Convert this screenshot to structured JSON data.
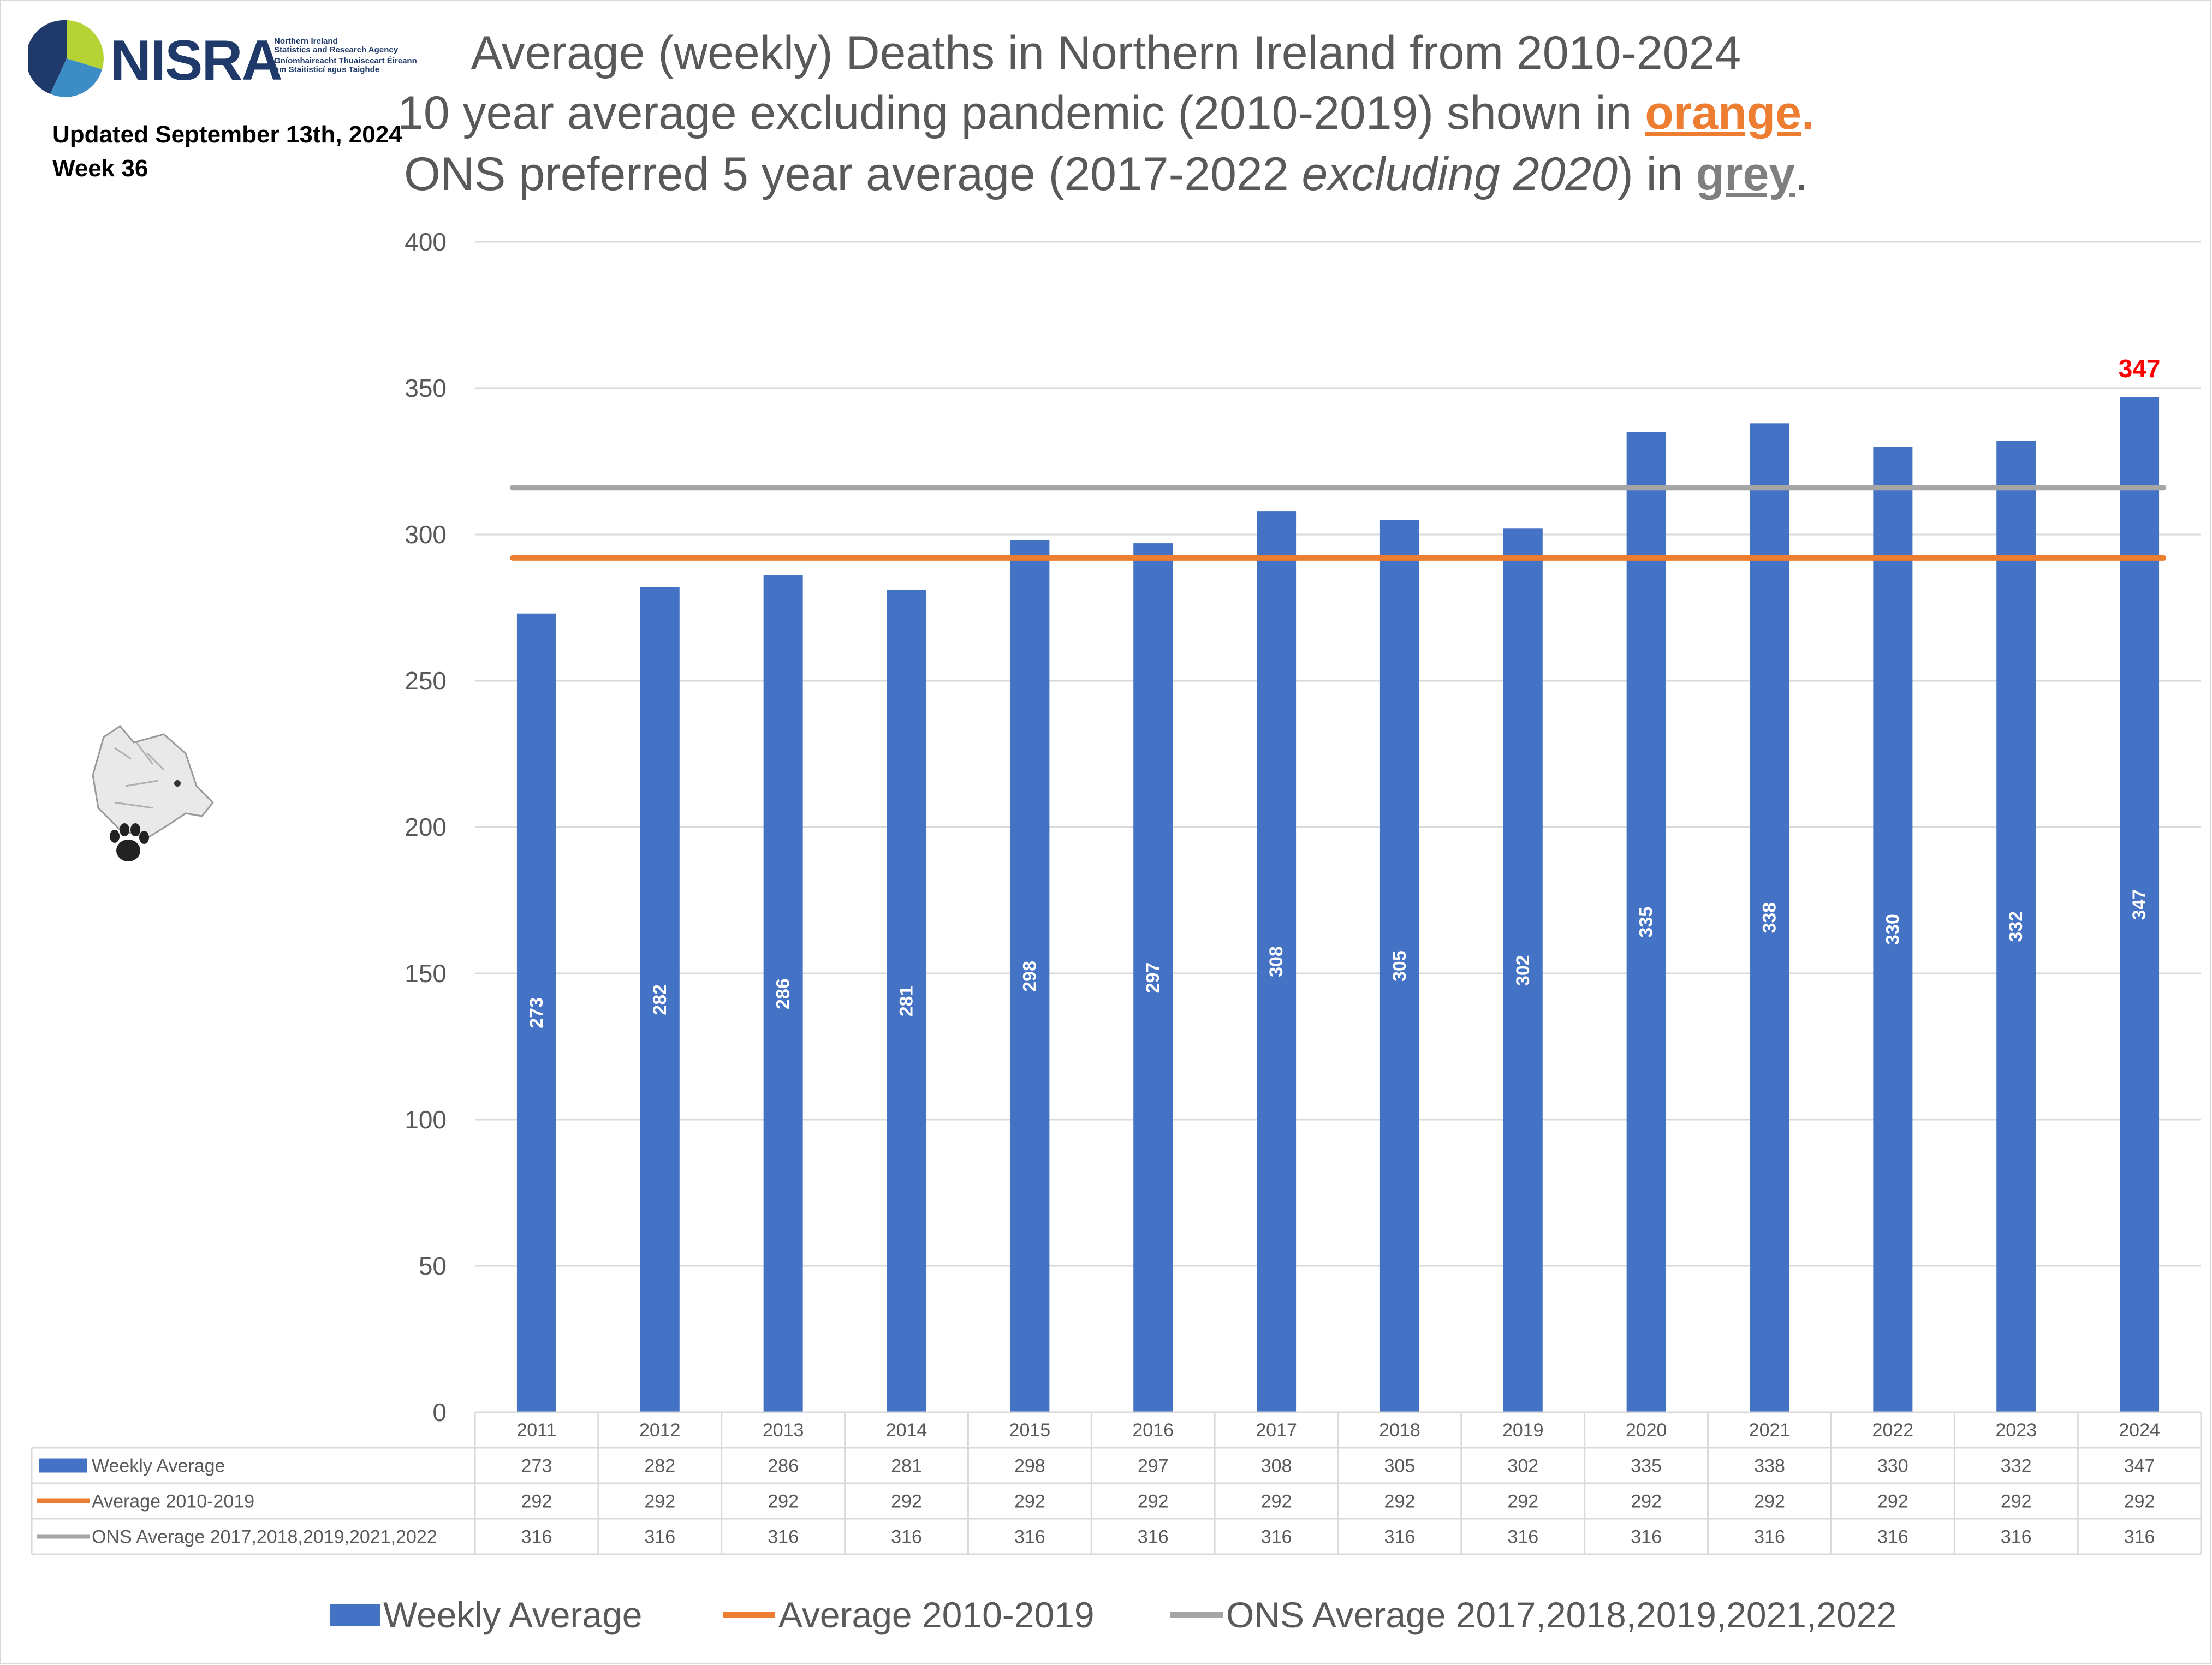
{
  "header": {
    "logo_text": "NISRA",
    "logo_sub": [
      "Northern Ireland",
      "Statistics and Research Agency",
      "Gníomhaireacht Thuaisceart Éireann",
      "um Staitisticí agus Taighde"
    ],
    "updated": "Updated September 13th, 2024",
    "week": "Week 36"
  },
  "title": {
    "line1": "Average (weekly) Deaths in Northern Ireland from 2010-2024",
    "line2_prefix": "10 year average excluding pandemic (2010-2019) shown in ",
    "line2_highlight": "orange",
    "line2_suffix": ".",
    "line3_prefix": "ONS preferred 5 year average (2017-2022 ",
    "line3_italic": "excluding 2020",
    "line3_mid": ") in ",
    "line3_highlight": "grey",
    "line3_suffix": "."
  },
  "colors": {
    "bar": "#4472c4",
    "orange": "#ed7d31",
    "grey": "#a5a5a5",
    "highlight_label": "#ff0000",
    "text": "#595959",
    "grid": "#d9d9d9"
  },
  "chart_data": {
    "type": "bar",
    "categories": [
      "2011",
      "2012",
      "2013",
      "2014",
      "2015",
      "2016",
      "2017",
      "2018",
      "2019",
      "2020",
      "2021",
      "2022",
      "2023",
      "2024"
    ],
    "series": [
      {
        "name": "Weekly Average",
        "kind": "bar",
        "values": [
          273,
          282,
          286,
          281,
          298,
          297,
          308,
          305,
          302,
          335,
          338,
          330,
          332,
          347
        ]
      },
      {
        "name": "Average 2010-2019",
        "kind": "line",
        "values": [
          292,
          292,
          292,
          292,
          292,
          292,
          292,
          292,
          292,
          292,
          292,
          292,
          292,
          292
        ]
      },
      {
        "name": "ONS Average 2017,2018,2019,2021,2022",
        "kind": "line",
        "values": [
          316,
          316,
          316,
          316,
          316,
          316,
          316,
          316,
          316,
          316,
          316,
          316,
          316,
          316
        ]
      }
    ],
    "ylim": [
      0,
      400
    ],
    "yticks": [
      0,
      50,
      100,
      150,
      200,
      250,
      300,
      350,
      400
    ],
    "highlight_label": "347",
    "grid": true,
    "legend": "bottom",
    "data_table": true
  }
}
